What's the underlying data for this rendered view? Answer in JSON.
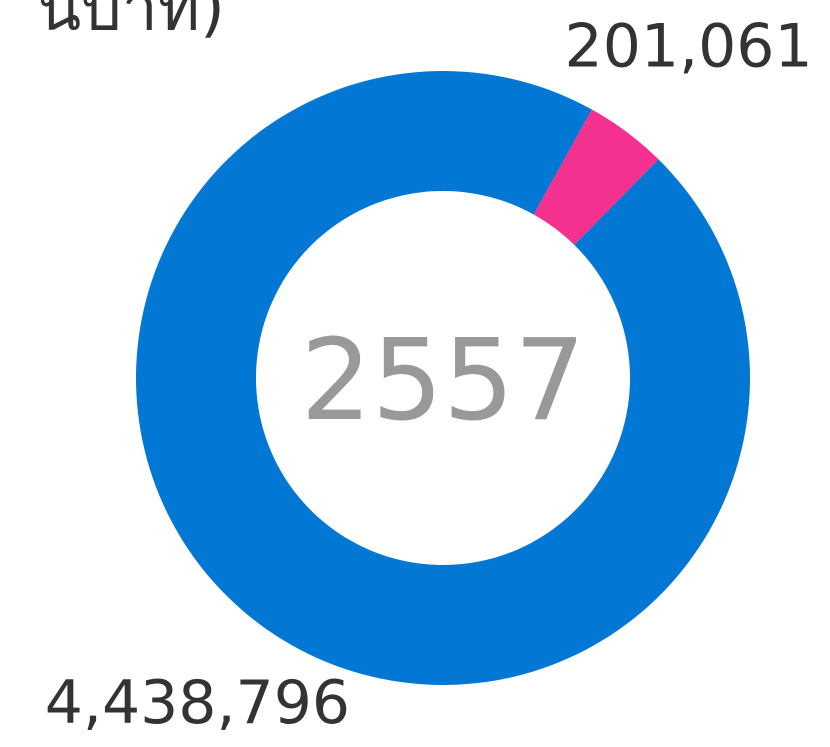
{
  "chart_data": {
    "type": "pie",
    "donut": true,
    "title": "นบาท)",
    "center_label": "2557",
    "values": [
      201061,
      4438796
    ],
    "value_labels": [
      "201,061",
      "4,438,796"
    ],
    "colors": [
      "#f5318f",
      "#0277d4"
    ]
  }
}
